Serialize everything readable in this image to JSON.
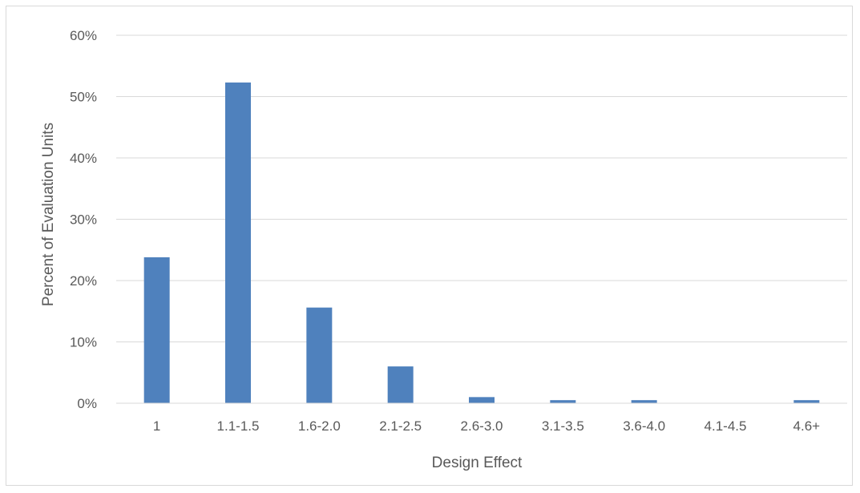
{
  "chart_data": {
    "type": "bar",
    "xlabel": "Design Effect",
    "ylabel": "Percent of Evaluation Units",
    "categories": [
      "1",
      "1.1-1.5",
      "1.6-2.0",
      "2.1-2.5",
      "2.6-3.0",
      "3.1-3.5",
      "3.6-4.0",
      "4.1-4.5",
      "4.6+"
    ],
    "values": [
      23.8,
      52.3,
      15.6,
      6.0,
      1.0,
      0.5,
      0.5,
      0.0,
      0.5
    ],
    "ylim": [
      0,
      60
    ],
    "yticks": [
      0,
      10,
      20,
      30,
      40,
      50,
      60
    ],
    "ytick_labels": [
      "0%",
      "10%",
      "20%",
      "30%",
      "40%",
      "50%",
      "60%"
    ],
    "bar_color": "#4f81bd",
    "grid": true,
    "legend": "none"
  }
}
